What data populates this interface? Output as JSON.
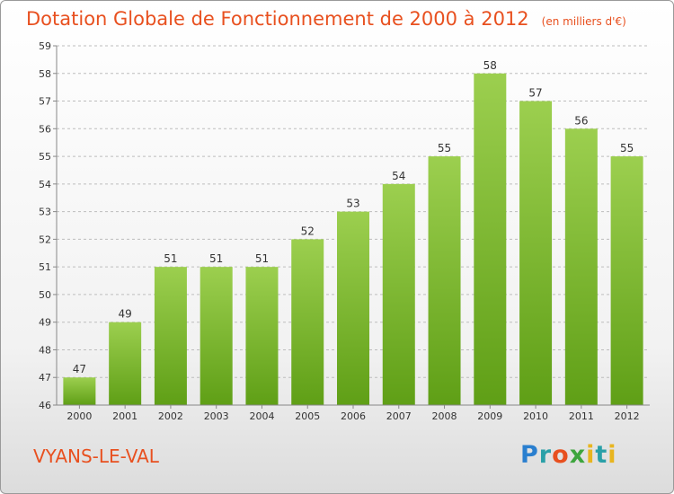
{
  "header": {
    "title": "Dotation Globale de Fonctionnement de 2000 à 2012",
    "subtitle": "(en milliers d'€)"
  },
  "footer": {
    "place": "VYANS-LE-VAL",
    "logo_text": "Proxiti",
    "logo_letters": [
      {
        "ch": "P",
        "color": "#2a7fcf"
      },
      {
        "ch": "r",
        "color": "#2aa0a8"
      },
      {
        "ch": "o",
        "color": "#e8501f"
      },
      {
        "ch": "x",
        "color": "#3ea53e"
      },
      {
        "ch": "i",
        "color": "#e8b51f"
      },
      {
        "ch": "t",
        "color": "#2aa0a8"
      },
      {
        "ch": "i",
        "color": "#e8b51f"
      }
    ]
  },
  "chart_data": {
    "type": "bar",
    "title": "Dotation Globale de Fonctionnement de 2000 à 2012",
    "subtitle": "(en milliers d'€)",
    "xlabel": "",
    "ylabel": "",
    "categories": [
      "2000",
      "2001",
      "2002",
      "2003",
      "2004",
      "2005",
      "2006",
      "2007",
      "2008",
      "2009",
      "2010",
      "2011",
      "2012"
    ],
    "values": [
      47,
      49,
      51,
      51,
      51,
      52,
      53,
      54,
      55,
      58,
      57,
      56,
      55
    ],
    "ylim": [
      46,
      59
    ],
    "yticks": [
      46,
      47,
      48,
      49,
      50,
      51,
      52,
      53,
      54,
      55,
      56,
      57,
      58,
      59
    ],
    "grid": "horizontal-dashed",
    "legend": "none",
    "colors": {
      "bar_top": "#9ccf4f",
      "bar_bottom": "#5f9f16",
      "grid": "#bdbdbd",
      "axis": "#888888"
    }
  }
}
